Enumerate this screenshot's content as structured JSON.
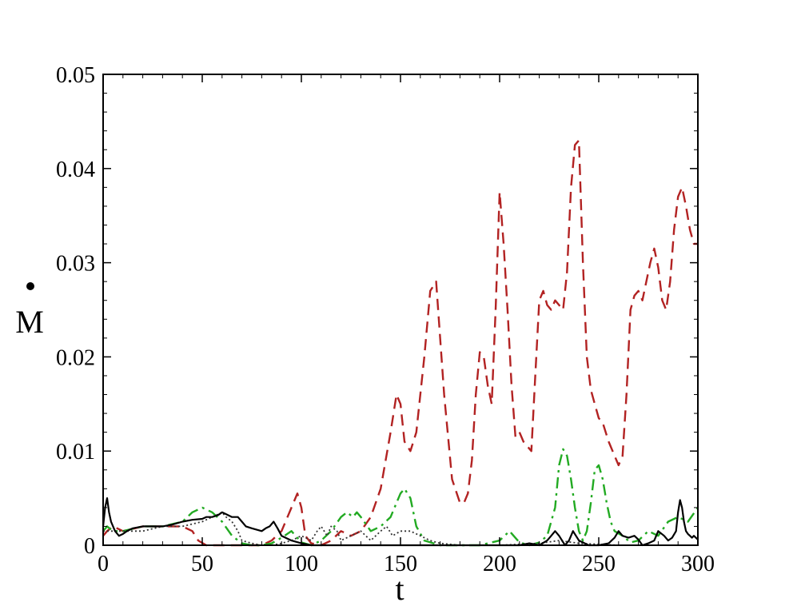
{
  "chart_data": {
    "type": "line",
    "title": "",
    "xlabel": "t",
    "ylabel": "M",
    "xlim": [
      0,
      300
    ],
    "ylim": [
      0,
      0.05
    ],
    "xticks": [
      0,
      50,
      100,
      150,
      200,
      250,
      300
    ],
    "xtick_labels": [
      "0",
      "50",
      "100",
      "150",
      "200",
      "250",
      "300"
    ],
    "yticks": [
      0,
      0.01,
      0.02,
      0.03,
      0.04,
      0.05
    ],
    "ytick_labels": [
      "0",
      "0.01",
      "0.02",
      "0.03",
      "0.04",
      "0.05"
    ],
    "grid": false,
    "legend": "none",
    "series": [
      {
        "style": "dashed",
        "color": "#b22222",
        "x": [
          0,
          2,
          5,
          10,
          20,
          30,
          40,
          45,
          48,
          52,
          55,
          60,
          70,
          80,
          85,
          90,
          95,
          98,
          100,
          102,
          105,
          110,
          115,
          120,
          125,
          130,
          135,
          140,
          145,
          148,
          150,
          152,
          155,
          158,
          162,
          165,
          168,
          172,
          176,
          180,
          182,
          184,
          186,
          188,
          190,
          192,
          194,
          196,
          198,
          200,
          202,
          204,
          206,
          208,
          210,
          212,
          214,
          216,
          218,
          220,
          222,
          224,
          226,
          228,
          230,
          232,
          234,
          236,
          238,
          240,
          242,
          244,
          246,
          248,
          250,
          252,
          255,
          258,
          260,
          262,
          264,
          266,
          268,
          270,
          272,
          274,
          276,
          278,
          280,
          282,
          284,
          286,
          288,
          290,
          292,
          294,
          296,
          298,
          300
        ],
        "y": [
          0.001,
          0.0015,
          0.002,
          0.0015,
          0.002,
          0.002,
          0.002,
          0.0015,
          0.0005,
          0.0,
          0.0,
          0.0,
          0.0,
          0.0,
          0.0005,
          0.0015,
          0.004,
          0.0055,
          0.004,
          0.001,
          0.0002,
          0.0,
          0.0005,
          0.0015,
          0.001,
          0.0015,
          0.003,
          0.006,
          0.012,
          0.016,
          0.015,
          0.011,
          0.01,
          0.012,
          0.02,
          0.027,
          0.028,
          0.016,
          0.007,
          0.0045,
          0.0045,
          0.0055,
          0.009,
          0.016,
          0.0205,
          0.02,
          0.017,
          0.015,
          0.025,
          0.0375,
          0.032,
          0.025,
          0.017,
          0.0115,
          0.012,
          0.011,
          0.0105,
          0.01,
          0.018,
          0.026,
          0.027,
          0.0255,
          0.025,
          0.026,
          0.0255,
          0.025,
          0.029,
          0.038,
          0.0425,
          0.043,
          0.03,
          0.02,
          0.0165,
          0.015,
          0.0135,
          0.013,
          0.011,
          0.0095,
          0.0085,
          0.0095,
          0.016,
          0.025,
          0.0265,
          0.027,
          0.026,
          0.028,
          0.03,
          0.0315,
          0.0295,
          0.026,
          0.025,
          0.028,
          0.0335,
          0.037,
          0.038,
          0.036,
          0.0335,
          0.032,
          0.032
        ]
      },
      {
        "style": "dashdot",
        "color": "#22aa22",
        "x": [
          0,
          2,
          5,
          10,
          20,
          30,
          40,
          45,
          50,
          55,
          60,
          65,
          70,
          75,
          80,
          85,
          90,
          95,
          100,
          105,
          110,
          115,
          120,
          123,
          126,
          128,
          130,
          135,
          140,
          145,
          148,
          150,
          152,
          155,
          158,
          162,
          170,
          180,
          190,
          200,
          205,
          210,
          215,
          220,
          224,
          228,
          230,
          232,
          234,
          236,
          238,
          240,
          242,
          244,
          246,
          248,
          250,
          252,
          254,
          256,
          258,
          262,
          266,
          270,
          275,
          280,
          285,
          290,
          295,
          300
        ],
        "y": [
          0.0015,
          0.002,
          0.0015,
          0.0015,
          0.002,
          0.002,
          0.0025,
          0.0035,
          0.004,
          0.0035,
          0.0025,
          0.001,
          0.0002,
          0.0,
          0.0,
          0.0002,
          0.0008,
          0.0015,
          0.0003,
          0.0,
          0.0005,
          0.0015,
          0.003,
          0.0035,
          0.003,
          0.0035,
          0.003,
          0.0015,
          0.002,
          0.003,
          0.0045,
          0.0055,
          0.006,
          0.005,
          0.002,
          0.0005,
          0.0,
          0.0,
          0.0,
          0.0005,
          0.0015,
          0.0003,
          0.0,
          0.0003,
          0.001,
          0.004,
          0.0085,
          0.0102,
          0.0095,
          0.007,
          0.004,
          0.0015,
          0.0005,
          0.0015,
          0.0045,
          0.008,
          0.0085,
          0.007,
          0.0045,
          0.0025,
          0.0015,
          0.001,
          0.0003,
          0.0005,
          0.0015,
          0.001,
          0.0025,
          0.003,
          0.0025,
          0.004
        ]
      },
      {
        "style": "dotted",
        "color": "#333333",
        "x": [
          0,
          5,
          10,
          20,
          30,
          40,
          50,
          55,
          60,
          62,
          65,
          68,
          70,
          75,
          80,
          85,
          90,
          95,
          100,
          105,
          108,
          110,
          113,
          115,
          118,
          120,
          125,
          130,
          135,
          140,
          143,
          146,
          150,
          155,
          160,
          165,
          170,
          180,
          200,
          220,
          230,
          240,
          260,
          280,
          300
        ],
        "y": [
          0.0015,
          0.0015,
          0.0015,
          0.0015,
          0.002,
          0.002,
          0.0025,
          0.003,
          0.0035,
          0.003,
          0.0025,
          0.0015,
          0.0005,
          0.0002,
          0.0,
          0.0,
          0.0002,
          0.0005,
          0.001,
          0.0005,
          0.0015,
          0.002,
          0.001,
          0.002,
          0.0015,
          0.0005,
          0.001,
          0.0015,
          0.0005,
          0.0015,
          0.002,
          0.001,
          0.0015,
          0.0015,
          0.001,
          0.0005,
          0.0002,
          0.0,
          0.0,
          0.0002,
          0.0005,
          0.0002,
          0.0,
          0.0,
          0.0
        ]
      },
      {
        "style": "solid",
        "color": "#000000",
        "x": [
          0,
          1,
          2,
          3,
          4,
          6,
          8,
          10,
          12,
          15,
          20,
          25,
          30,
          35,
          40,
          45,
          50,
          52,
          55,
          58,
          60,
          62,
          65,
          68,
          70,
          72,
          75,
          80,
          82,
          84,
          86,
          88,
          90,
          95,
          100,
          105,
          110,
          150,
          200,
          210,
          215,
          220,
          224,
          226,
          228,
          230,
          233,
          235,
          237,
          240,
          245,
          250,
          255,
          258,
          260,
          262,
          265,
          268,
          270,
          272,
          275,
          278,
          280,
          283,
          285,
          287,
          289,
          290,
          291,
          292,
          293,
          294,
          295,
          296,
          297,
          298,
          300
        ],
        "y": [
          0.002,
          0.004,
          0.005,
          0.0035,
          0.0025,
          0.0015,
          0.001,
          0.0012,
          0.0015,
          0.0018,
          0.002,
          0.002,
          0.002,
          0.0022,
          0.0025,
          0.0027,
          0.0028,
          0.003,
          0.003,
          0.0032,
          0.0035,
          0.0033,
          0.003,
          0.003,
          0.0025,
          0.002,
          0.0018,
          0.0015,
          0.0018,
          0.002,
          0.0025,
          0.0018,
          0.001,
          0.0005,
          0.0002,
          0.0,
          0.0,
          0.0,
          0.0,
          0.0,
          0.0002,
          0.0,
          0.0005,
          0.001,
          0.0015,
          0.001,
          0.0,
          0.0005,
          0.0015,
          0.0005,
          0.0,
          0.0,
          0.0002,
          0.0008,
          0.0015,
          0.001,
          0.0008,
          0.001,
          0.0006,
          0.0,
          0.0002,
          0.0005,
          0.0015,
          0.001,
          0.0005,
          0.0008,
          0.0015,
          0.0035,
          0.0048,
          0.004,
          0.0025,
          0.0015,
          0.0012,
          0.001,
          0.0008,
          0.001,
          0.0006
        ]
      }
    ]
  }
}
